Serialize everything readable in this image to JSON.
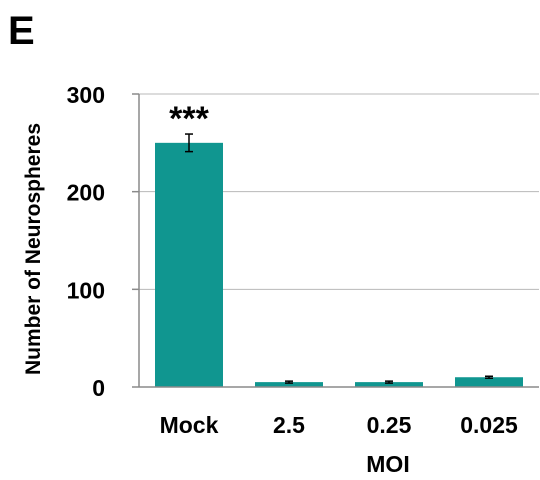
{
  "panel_label": "E",
  "chart_data": {
    "type": "bar",
    "categories": [
      "Mock",
      "2.5",
      "0.25",
      "0.025"
    ],
    "values": [
      250,
      5,
      5,
      10
    ],
    "errors": [
      9,
      1,
      1,
      1
    ],
    "annotations": [
      "***",
      "",
      "",
      ""
    ],
    "xlabel": "MOI",
    "ylabel": "Number of Neurospheres",
    "ylim": [
      0,
      300
    ],
    "yticks": [
      0,
      100,
      200,
      300
    ],
    "grid": true,
    "bar_color": "#109690",
    "gridline_color": "#b8b8b8",
    "axis_color": "#8a8a8a"
  }
}
